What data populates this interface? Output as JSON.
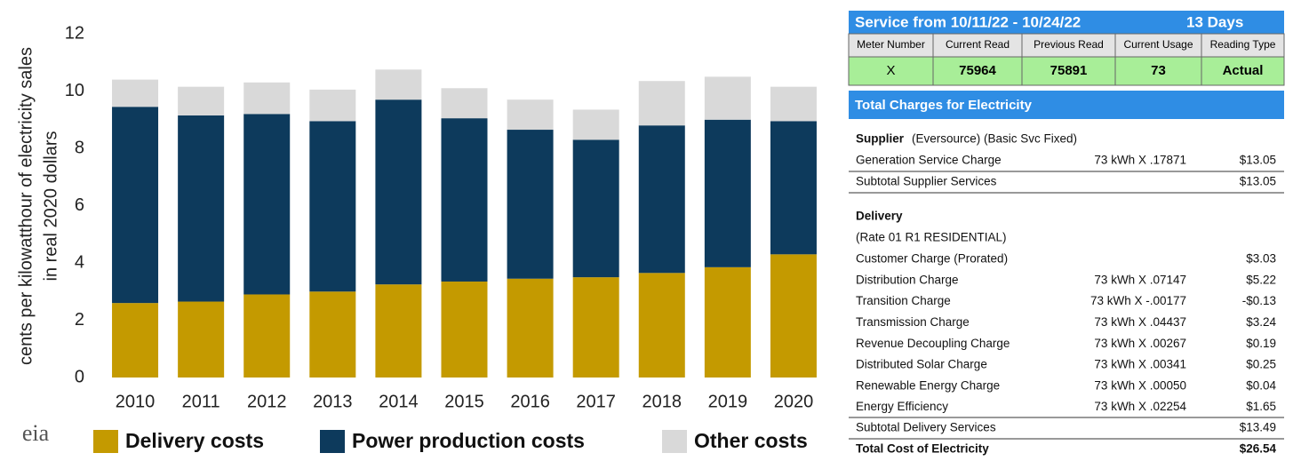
{
  "chart_data": {
    "type": "stacked_bar",
    "y_label": [
      "cents per kilowatthour of electricity sales",
      "in real 2020 dollars"
    ],
    "categories": [
      "2010",
      "2011",
      "2012",
      "2013",
      "2014",
      "2015",
      "2016",
      "2017",
      "2018",
      "2019",
      "2020"
    ],
    "series": [
      {
        "name": "Delivery costs",
        "color": "#c49a00",
        "values": [
          2.6,
          2.65,
          2.9,
          3.0,
          3.25,
          3.35,
          3.45,
          3.5,
          3.65,
          3.85,
          4.3
        ]
      },
      {
        "name": "Power production costs",
        "color": "#0d3a5c",
        "values": [
          6.85,
          6.5,
          6.3,
          5.95,
          6.45,
          5.7,
          5.2,
          4.8,
          5.15,
          5.15,
          4.65
        ]
      },
      {
        "name": "Other costs",
        "color": "#d9d9d9",
        "values": [
          0.95,
          1.0,
          1.1,
          1.1,
          1.05,
          1.05,
          1.05,
          1.05,
          1.55,
          1.5,
          1.2
        ]
      }
    ],
    "ylim": [
      0,
      12
    ],
    "yticks": [
      0,
      2,
      4,
      6,
      8,
      10,
      12
    ],
    "logo": "eia"
  },
  "bill": {
    "service": "Service from 10/11/22 - 10/24/22",
    "days": "13 Days",
    "meter_headers": [
      "Meter Number",
      "Current Read",
      "Previous Read",
      "Current Usage",
      "Reading Type"
    ],
    "meter_row": [
      "X",
      "75964",
      "75891",
      "73",
      "Actual"
    ],
    "charges_title": "Total Charges for Electricity",
    "supplier": {
      "label": "Supplier",
      "detail": "(Eversource) (Basic Svc Fixed)"
    },
    "supplier_items": [
      [
        "Generation Service Charge",
        "73 kWh X .17871",
        "$13.05"
      ]
    ],
    "supplier_subtotal": [
      "Subtotal Supplier Services",
      "$13.05"
    ],
    "delivery": "Delivery",
    "rate": "(Rate 01 R1 RESIDENTIAL)",
    "delivery_items": [
      [
        "Customer Charge (Prorated)",
        "",
        "$3.03"
      ],
      [
        "Distribution Charge",
        "73 kWh X .07147",
        "$5.22"
      ],
      [
        "Transition Charge",
        "73 kWh X -.00177",
        "-$0.13"
      ],
      [
        "Transmission Charge",
        "73 kWh X .04437",
        "$3.24"
      ],
      [
        "Revenue Decoupling Charge",
        "73 kWh X .00267",
        "$0.19"
      ],
      [
        "Distributed Solar Charge",
        "73 kWh X .00341",
        "$0.25"
      ],
      [
        "Renewable Energy Charge",
        "73 kWh X .00050",
        "$0.04"
      ],
      [
        "Energy Efficiency",
        "73 kWh X .02254",
        "$1.65"
      ]
    ],
    "delivery_subtotal": [
      "Subtotal Delivery Services",
      "$13.49"
    ],
    "total": [
      "Total Cost of Electricity",
      "$26.54"
    ]
  }
}
